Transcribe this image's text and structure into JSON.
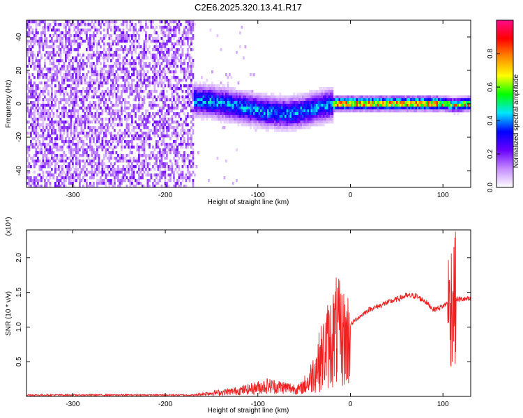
{
  "title": "C2E6.2025.320.13.41.R17",
  "chart_data": [
    {
      "type": "heatmap",
      "title": "C2E6.2025.320.13.41.R17",
      "xlabel": "Height of straight line (km)",
      "ylabel": "Frequency (Hz)",
      "xlim": [
        -350,
        130
      ],
      "ylim": [
        -50,
        50
      ],
      "xticks": [
        -300,
        -200,
        -100,
        0,
        100
      ],
      "xtick_labels": [
        "-300",
        "-200",
        "-100",
        "0",
        "100"
      ],
      "yticks": [
        -40,
        -20,
        0,
        20,
        40
      ],
      "ytick_labels": [
        "-40",
        "-20",
        "0",
        "20",
        "40"
      ],
      "colorbar": {
        "label": "Normalized spectral amplitude",
        "range": [
          0,
          1
        ],
        "ticks": [
          0.0,
          0.2,
          0.4,
          0.6,
          0.8
        ],
        "tick_labels": [
          "0.0",
          "0.2",
          "0.4",
          "0.6",
          "0.8"
        ],
        "colors": [
          "#ffffff",
          "#c58cff",
          "#6a00ff",
          "#0000ff",
          "#00e5ff",
          "#00ff00",
          "#ffff00",
          "#ff8c00",
          "#ff0000",
          "#ff0a8a"
        ]
      },
      "ridge": {
        "x": [
          -170,
          -150,
          -130,
          -110,
          -90,
          -70,
          -55,
          -40,
          -25,
          -15,
          0,
          40,
          80,
          100,
          110,
          130
        ],
        "y": [
          3,
          2,
          0,
          -2,
          -4,
          -5,
          -4,
          -2,
          0,
          1,
          1,
          1,
          1,
          1,
          0,
          1
        ]
      },
      "grid": false,
      "legend": "colorbar right"
    },
    {
      "type": "line",
      "xlabel": "Height of straight line (km)",
      "ylabel": "SNR (10 * v/v)",
      "ylabel_multiplier": "(x10⁴)",
      "xlim": [
        -350,
        130
      ],
      "ylim": [
        0,
        2.4
      ],
      "xticks": [
        -300,
        -200,
        -100,
        0,
        100
      ],
      "xtick_labels": [
        "-300",
        "-200",
        "-100",
        "0",
        "100"
      ],
      "yticks": [
        0.5,
        1.0,
        1.5,
        2.0
      ],
      "ytick_labels": [
        "0.5",
        "1.0",
        "1.5",
        "2.0"
      ],
      "color": "#ee2020",
      "envelope": {
        "x": [
          -350,
          -250,
          -170,
          -155,
          -130,
          -110,
          -90,
          -70,
          -55,
          -45,
          -35,
          -25,
          -15,
          -5,
          5,
          20,
          40,
          60,
          70,
          80,
          90,
          100,
          105,
          108,
          110,
          113,
          120,
          130
        ],
        "y": [
          0.02,
          0.02,
          0.02,
          0.05,
          0.08,
          0.12,
          0.18,
          0.15,
          0.12,
          0.25,
          0.55,
          0.85,
          1.1,
          0.95,
          1.1,
          1.25,
          1.35,
          1.45,
          1.45,
          1.38,
          1.25,
          1.3,
          1.35,
          1.2,
          1.5,
          1.4,
          1.4,
          1.4
        ]
      },
      "grid": false
    }
  ]
}
